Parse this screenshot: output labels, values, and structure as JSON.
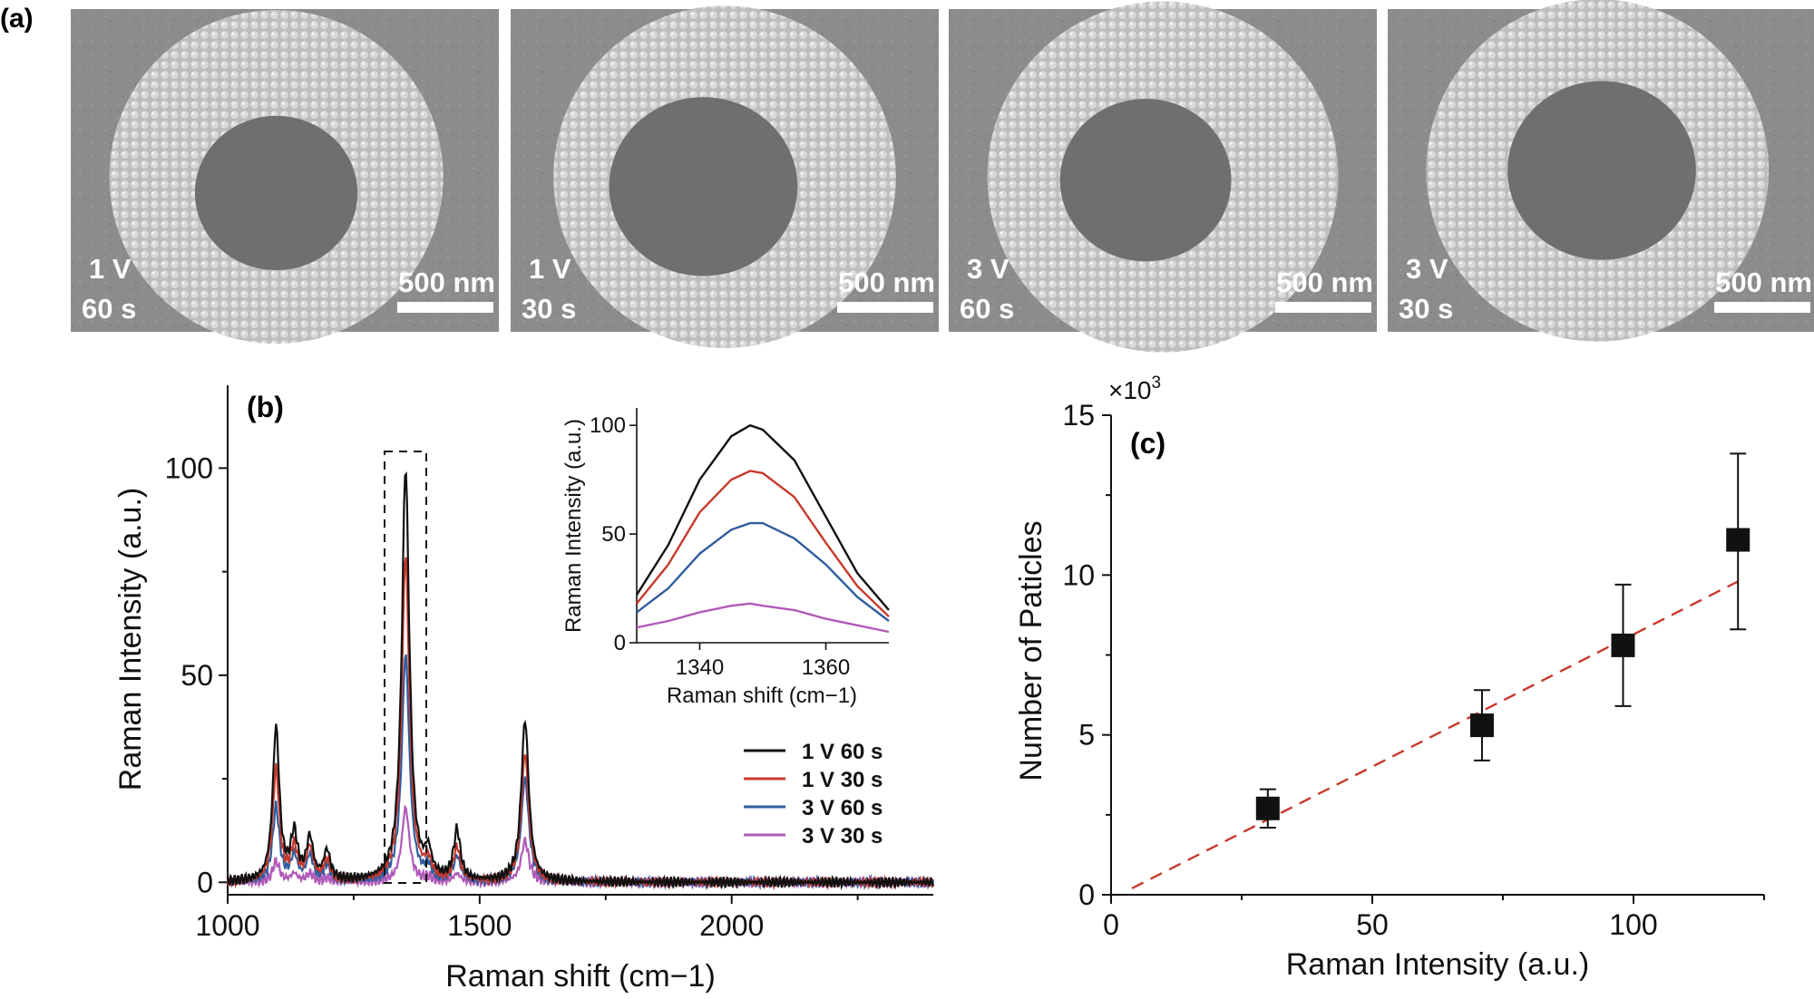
{
  "panel_a": {
    "letter": "(a)",
    "images": [
      {
        "voltage": "1 V",
        "time": "60 s",
        "scale": "500 nm"
      },
      {
        "voltage": "1 V",
        "time": "30 s",
        "scale": "500 nm"
      },
      {
        "voltage": "3 V",
        "time": "60 s",
        "scale": "500 nm"
      },
      {
        "voltage": "3 V",
        "time": "30 s",
        "scale": "500 nm"
      }
    ]
  },
  "chart_data": [
    {
      "panel": "(b)",
      "type": "line",
      "xlabel": "Raman shift (cm−1)",
      "ylabel": "Raman Intensity (a.u.)",
      "xlim": [
        1000,
        2400
      ],
      "ylim": [
        -3,
        120
      ],
      "xticks": [
        1000,
        1500,
        2000
      ],
      "yticks": [
        0,
        50,
        100
      ],
      "peaks": [
        1096,
        1132,
        1163,
        1197,
        1353,
        1398,
        1455,
        1590
      ],
      "series": [
        {
          "name": "1 V 60 s",
          "color": "#111111",
          "peak_heights": [
            37,
            11,
            10,
            7,
            100,
            6,
            12,
            39
          ]
        },
        {
          "name": "1 V 30 s",
          "color": "#c8392b",
          "peak_heights": [
            27,
            8,
            8,
            5,
            79,
            4,
            8,
            31
          ]
        },
        {
          "name": "3 V 60 s",
          "color": "#2f5d9e",
          "peak_heights": [
            18,
            6,
            6,
            4,
            55,
            3,
            6,
            25
          ]
        },
        {
          "name": "3 V 30 s",
          "color": "#b05ab8",
          "peak_heights": [
            5,
            2,
            2,
            1,
            18,
            1,
            2,
            10
          ]
        }
      ],
      "legend_position": "middle-right",
      "inset": {
        "type": "line",
        "xlabel": "Raman shift (cm−1)",
        "ylabel": "Raman Intensity (a.u.)",
        "xlim": [
          1330,
          1370
        ],
        "ylim": [
          0,
          108
        ],
        "xticks": [
          1340,
          1360
        ],
        "yticks": [
          0,
          50,
          100
        ],
        "x": [
          1330,
          1335,
          1340,
          1345,
          1348,
          1350,
          1355,
          1360,
          1365,
          1370
        ],
        "series": [
          {
            "name": "1 V 60 s",
            "values": [
              22,
              45,
              75,
              95,
              100,
              98,
              84,
              58,
              32,
              15
            ]
          },
          {
            "name": "1 V 30 s",
            "values": [
              18,
              36,
              60,
              75,
              79,
              78,
              67,
              46,
              26,
              12
            ]
          },
          {
            "name": "3 V 60 s",
            "values": [
              14,
              25,
              41,
              52,
              55,
              55,
              48,
              36,
              21,
              10
            ]
          },
          {
            "name": "3 V 30 s",
            "values": [
              7,
              10,
              14,
              17,
              18,
              17,
              15,
              11,
              8,
              5
            ]
          }
        ]
      }
    },
    {
      "panel": "(c)",
      "type": "scatter",
      "xlabel": "Raman Intensity (a.u.)",
      "ylabel": "Number of Paticles",
      "multiplier": "×10",
      "multiplier_exp": "3",
      "xlim": [
        0,
        125
      ],
      "ylim": [
        0,
        15
      ],
      "xticks": [
        0,
        50,
        100
      ],
      "yticks": [
        0,
        5,
        10,
        15
      ],
      "points": [
        {
          "x": 30,
          "y": 2.7,
          "err_low": 2.1,
          "err_high": 3.3
        },
        {
          "x": 71,
          "y": 5.3,
          "err_low": 4.2,
          "err_high": 6.4
        },
        {
          "x": 98,
          "y": 7.8,
          "err_low": 5.9,
          "err_high": 9.7
        },
        {
          "x": 120,
          "y": 11.1,
          "err_low": 8.3,
          "err_high": 13.8
        }
      ],
      "fit_line": {
        "x": [
          4,
          120
        ],
        "y": [
          0.2,
          9.8
        ],
        "color": "#c8392b",
        "style": "dashed"
      }
    }
  ]
}
